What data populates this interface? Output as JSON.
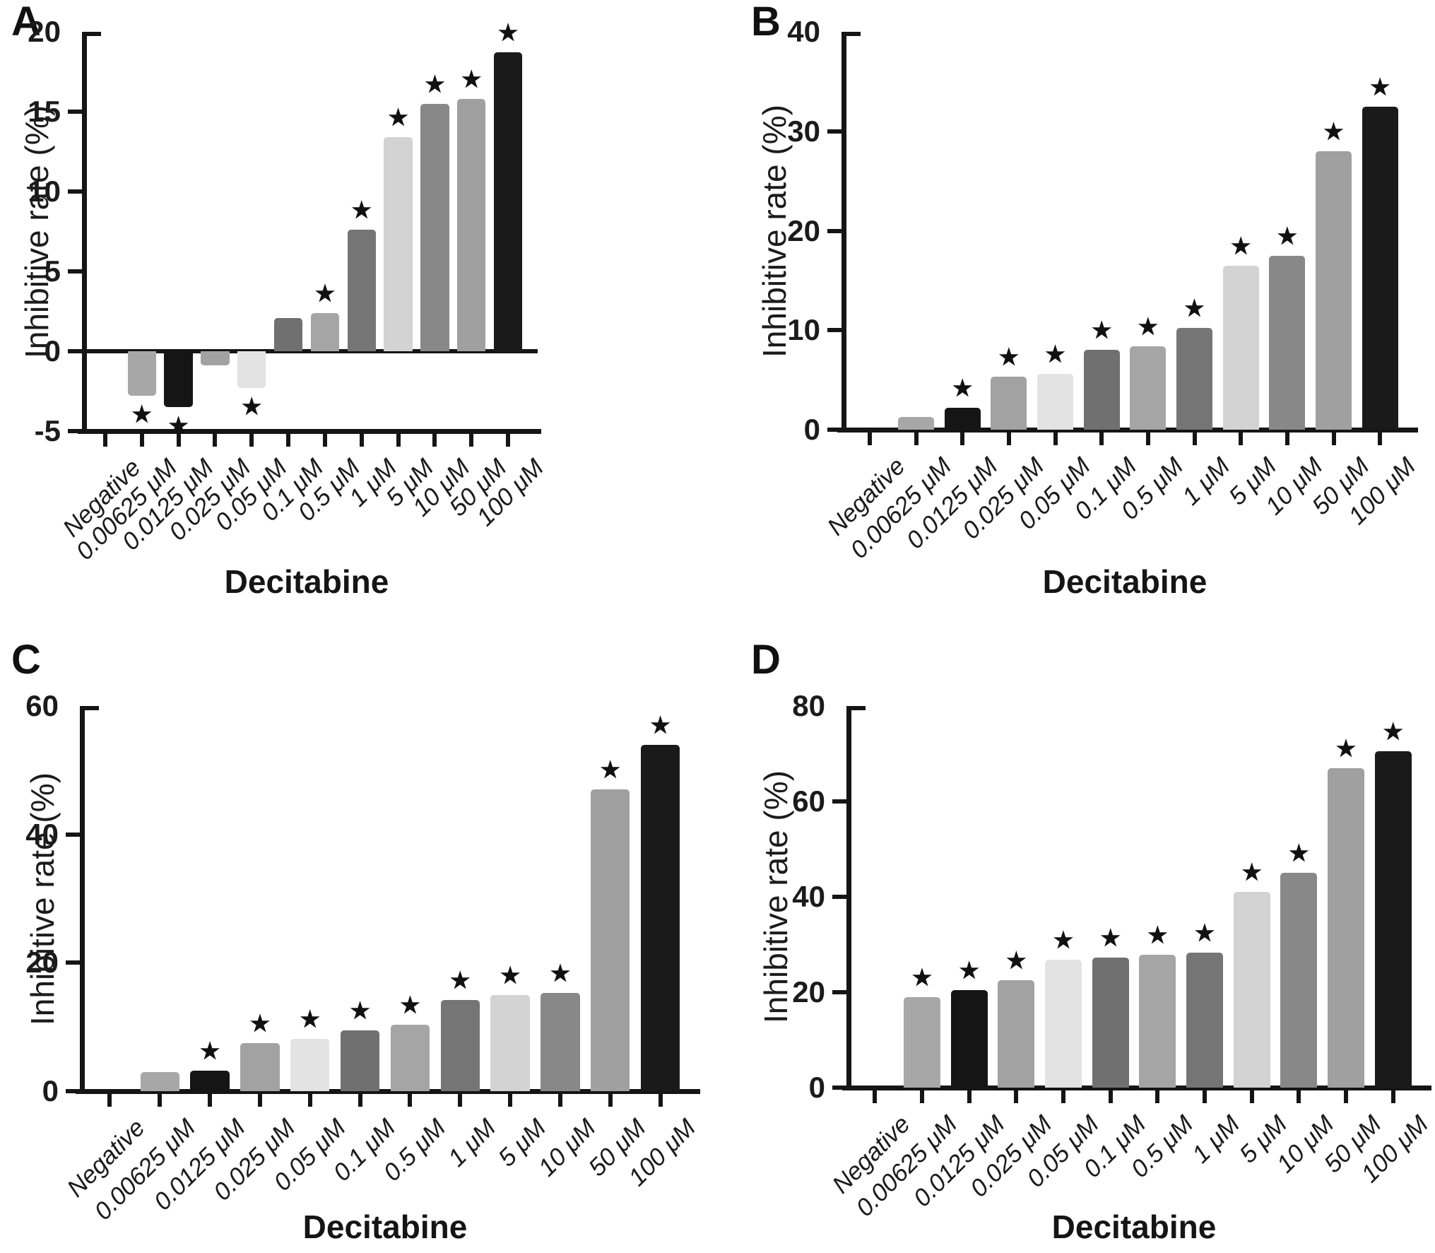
{
  "figure": {
    "xlabel": "Decitabine",
    "ylabel": "Inhibitive rate (%)",
    "significance_marker": "★",
    "axis_color": "#151515",
    "text_color": "#1b1b1b",
    "background_color": "#ffffff",
    "bar_palette": [
      null,
      "#a7a7a7",
      "#151515",
      "#a2a2a2",
      "#e3e3e3",
      "#707070",
      "#a5a5a5",
      "#757575",
      "#d3d3d3",
      "#888888",
      "#a0a0a0",
      "#1a1a1a"
    ]
  },
  "chart_data": [
    {
      "type": "bar",
      "panel_label": "A",
      "xlabel": "Decitabine",
      "ylabel": "Inhibitive rate (%)",
      "categories": [
        "Negative",
        "0.00625 μM",
        "0.0125 μM",
        "0.025 μM",
        "0.05 μM",
        "0.1 μM",
        "0.5 μM",
        "1 μM",
        "5 μM",
        "10 μM",
        "50 μM",
        "100 μM"
      ],
      "values": [
        0,
        -2.8,
        -3.5,
        -0.9,
        -2.3,
        2.1,
        2.4,
        7.6,
        13.4,
        15.5,
        15.8,
        18.7
      ],
      "significant": [
        false,
        true,
        true,
        false,
        true,
        false,
        true,
        true,
        true,
        true,
        true,
        true
      ],
      "ylim": [
        -5,
        20
      ],
      "yticks": [
        -5,
        0,
        5,
        10,
        15,
        20
      ],
      "grid": false,
      "legend": null
    },
    {
      "type": "bar",
      "panel_label": "B",
      "xlabel": "Decitabine",
      "ylabel": "Inhibitive rate (%)",
      "categories": [
        "Negative",
        "0.00625 μM",
        "0.0125 μM",
        "0.025 μM",
        "0.05 μM",
        "0.1 μM",
        "0.5 μM",
        "1 μM",
        "5 μM",
        "10 μM",
        "50 μM",
        "100 μM"
      ],
      "values": [
        0,
        1.3,
        2.2,
        5.3,
        5.6,
        8.0,
        8.4,
        10.2,
        16.5,
        17.5,
        28.0,
        32.5
      ],
      "significant": [
        false,
        false,
        true,
        true,
        true,
        true,
        true,
        true,
        true,
        true,
        true,
        true
      ],
      "ylim": [
        0,
        40
      ],
      "yticks": [
        0,
        10,
        20,
        30,
        40
      ],
      "grid": false,
      "legend": null
    },
    {
      "type": "bar",
      "panel_label": "C",
      "xlabel": "Decitabine",
      "ylabel": "Inhibitive rate (%)",
      "categories": [
        "Negative",
        "0.00625 μM",
        "0.0125 μM",
        "0.025 μM",
        "0.05 μM",
        "0.1 μM",
        "0.5 μM",
        "1 μM",
        "5 μM",
        "10 μM",
        "50 μM",
        "100 μM"
      ],
      "values": [
        0,
        3.0,
        3.2,
        7.5,
        8.2,
        9.5,
        10.3,
        14.2,
        15.0,
        15.3,
        47.0,
        54.0
      ],
      "significant": [
        false,
        false,
        true,
        true,
        true,
        true,
        true,
        true,
        true,
        true,
        true,
        true
      ],
      "ylim": [
        0,
        60
      ],
      "yticks": [
        0,
        20,
        40,
        60
      ],
      "grid": false,
      "legend": null
    },
    {
      "type": "bar",
      "panel_label": "D",
      "xlabel": "Decitabine",
      "ylabel": "Inhibitive rate (%)",
      "categories": [
        "Negative",
        "0.00625 μM",
        "0.0125 μM",
        "0.025 μM",
        "0.05 μM",
        "0.1 μM",
        "0.5 μM",
        "1 μM",
        "5 μM",
        "10 μM",
        "50 μM",
        "100 μM"
      ],
      "values": [
        0,
        19.0,
        20.5,
        22.5,
        26.8,
        27.2,
        27.8,
        28.3,
        41.0,
        45.0,
        67.0,
        70.5
      ],
      "significant": [
        false,
        true,
        true,
        true,
        true,
        true,
        true,
        true,
        true,
        true,
        true,
        true
      ],
      "ylim": [
        0,
        80
      ],
      "yticks": [
        0,
        20,
        40,
        60,
        80
      ],
      "grid": false,
      "legend": null
    }
  ]
}
